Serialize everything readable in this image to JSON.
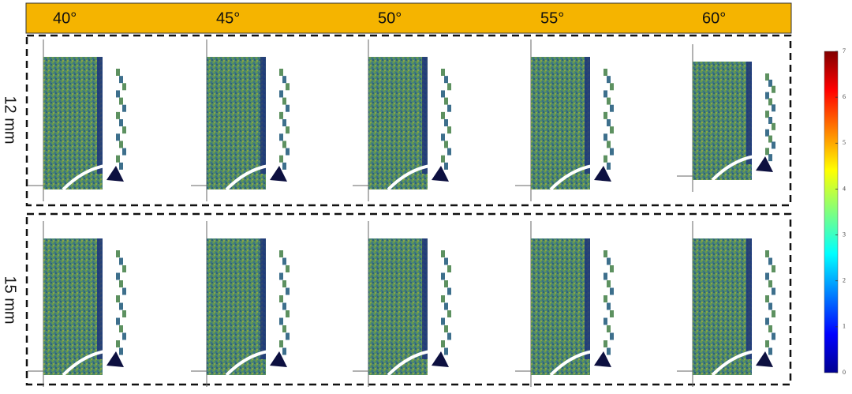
{
  "columns": [
    "40°",
    "45°",
    "50°",
    "55°",
    "60°"
  ],
  "rows": [
    "12 mm",
    "15 mm"
  ],
  "colorbar": {
    "ticks": [
      0,
      1,
      2,
      3,
      4,
      5,
      6,
      7
    ]
  }
}
